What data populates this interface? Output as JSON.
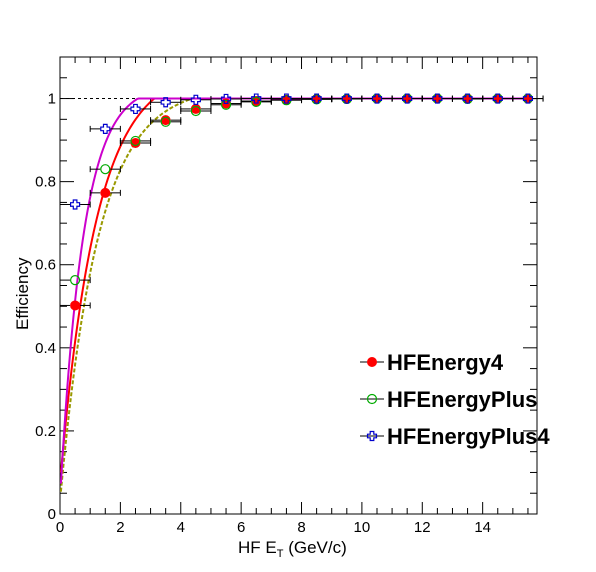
{
  "chart_data": {
    "type": "scatter",
    "title": "",
    "xlabel": "HF E",
    "xlabel_sub": "T",
    "xlabel_unit": " (GeV/c)",
    "ylabel": "Efficiency",
    "xlim": [
      0,
      15.8
    ],
    "ylim": [
      0,
      1.1
    ],
    "x_ticks": [
      0,
      2,
      4,
      6,
      8,
      10,
      12,
      14
    ],
    "x_tick_labels": [
      "0",
      "2",
      "4",
      "6",
      "8",
      "10",
      "12",
      "14"
    ],
    "y_ticks": [
      0,
      0.2,
      0.4,
      0.6,
      0.8,
      1
    ],
    "y_tick_labels": [
      "0",
      "0.2",
      "0.4",
      "0.6",
      "0.8",
      "1"
    ],
    "reference_line": 1.0,
    "grid": false,
    "legend_position": "bottom-right",
    "x": [
      0.5,
      1.5,
      2.5,
      3.5,
      4.5,
      5.5,
      6.5,
      7.5,
      8.5,
      9.5,
      10.5,
      11.5,
      12.5,
      13.5,
      14.5,
      15.5
    ],
    "x_error": 0.5,
    "series": [
      {
        "name": "HFEnergy4",
        "marker": "filled-circle",
        "color": "#ff0000",
        "values": [
          0.502,
          0.773,
          0.893,
          0.948,
          0.975,
          0.988,
          0.994,
          0.997,
          0.999,
          0.999,
          1.0,
          1.0,
          1.0,
          1.0,
          1.0,
          1.0
        ],
        "fit": {
          "a": 1.0,
          "b": 0.83,
          "c": 0.075,
          "color": "#ff0000"
        }
      },
      {
        "name": "HFEnergyPlus",
        "marker": "open-circle",
        "color": "#00aa00",
        "values": [
          0.563,
          0.83,
          0.898,
          0.944,
          0.97,
          0.985,
          0.992,
          0.996,
          0.998,
          0.999,
          1.0,
          1.0,
          1.0,
          0.999,
          1.0,
          1.0
        ],
        "fit": {
          "a": 1.0,
          "b": 0.8,
          "c": 0.03,
          "color": "#999900"
        }
      },
      {
        "name": "HFEnergyPlus4",
        "marker": "open-cross",
        "color": "#0000cc",
        "values": [
          0.745,
          0.927,
          0.975,
          0.991,
          0.997,
          0.999,
          1.0,
          1.0,
          1.0,
          1.0,
          1.0,
          1.0,
          1.0,
          1.0,
          1.0,
          1.0
        ],
        "fit": {
          "a": 1.0,
          "b": 1.3,
          "c": 0.035,
          "color": "#cc00cc"
        }
      }
    ]
  }
}
